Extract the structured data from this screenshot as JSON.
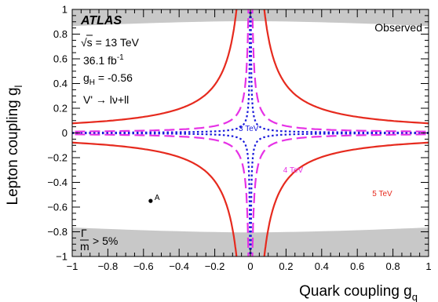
{
  "chart_data": {
    "type": "line",
    "xlabel": "Quark coupling g",
    "xlabel_sub": "q",
    "ylabel": "Lepton coupling g",
    "ylabel_sub": "l",
    "xlim": [
      -1,
      1
    ],
    "ylim": [
      -1,
      1
    ],
    "xticks": [
      "−1",
      "−0.8",
      "−0.6",
      "−0.4",
      "−0.2",
      "0",
      "0.2",
      "0.4",
      "0.6",
      "0.8",
      "1"
    ],
    "yticks": [
      "−1",
      "−0.8",
      "−0.6",
      "−0.4",
      "−0.2",
      "0",
      "0.2",
      "0.4",
      "0.6",
      "0.8",
      "1"
    ],
    "experiment": "ATLAS",
    "energy_prefix": "√s = 13 TeV",
    "lumi": "36.1 fb",
    "lumi_exp": "-1",
    "gh_label": "g",
    "gh_sub": "H",
    "gh_value": " = -0.56",
    "process": "V' → lν+ll",
    "legend_observed": "Observed",
    "gamma_label": "Γ",
    "gamma_den": "m",
    "gamma_value": "> 5%",
    "grey_color": "#c8c8c8",
    "series": [
      {
        "name": "3 TeV",
        "color": "#1a1adb",
        "style": "dotted",
        "k": 0.00265,
        "label_x": -0.01,
        "label_y": 0.015
      },
      {
        "name": "4 TeV",
        "color": "#e632e6",
        "style": "dashed",
        "k": 0.0113,
        "label_x": 0.24,
        "label_y": -0.32
      },
      {
        "name": "5 TeV",
        "color": "#e62a1e",
        "style": "solid",
        "k": 0.078,
        "label_x": 0.74,
        "label_y": -0.51
      }
    ],
    "benchmark": {
      "name": "A",
      "x": -0.56,
      "y": -0.55
    }
  }
}
